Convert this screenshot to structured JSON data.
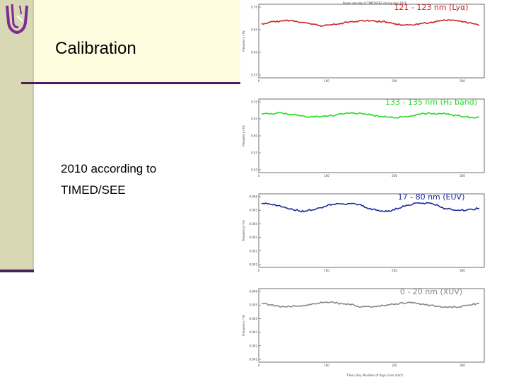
{
  "slide": {
    "title": "Calibration",
    "body_lines": [
      "2010 according to",
      "TIMED/SEE"
    ]
  },
  "colors": {
    "band": "#fffde0",
    "sidebar": "#d8d8b4",
    "rule": "#4b1f5c",
    "logo": "#7a2d91"
  },
  "figure": {
    "top_title": "Power density of TIMED/SEE during day 2010",
    "bottom_xlabel": "Time / day (Number of days since start)",
    "panels": [
      {
        "label": "121 - 123 nm (Lyα)",
        "color": "#cc2222",
        "ylabel": "Frequency / Hz",
        "yticks": [
          "0.70",
          "0.65",
          "0.60",
          "0.55"
        ],
        "xticks": [
          "0",
          "100",
          "200",
          "300"
        ],
        "level": 0.75,
        "noise": 0.06,
        "seed": 1
      },
      {
        "label": "133 - 135 nm (H₂ band)",
        "color": "#22dd22",
        "ylabel": "Frequency / Hz",
        "yticks": [
          "0.70",
          "0.65",
          "0.60",
          "0.55",
          "0.50"
        ],
        "xticks": [
          "0",
          "100",
          "200",
          "300"
        ],
        "level": 0.78,
        "noise": 0.05,
        "seed": 2
      },
      {
        "label": "17 - 80 nm (EUV)",
        "color": "#1a2aa0",
        "ylabel": "Frequency / Hz",
        "yticks": [
          "0.006",
          "0.005",
          "0.004",
          "0.003",
          "0.002",
          "0.001"
        ],
        "xticks": [
          "0",
          "100",
          "200",
          "300"
        ],
        "level": 0.82,
        "noise": 0.1,
        "seed": 3
      },
      {
        "label": "0 - 20 nm (XUV)",
        "color": "#888888",
        "ylabel": "Frequency / Hz",
        "yticks": [
          "0.006",
          "0.005",
          "0.004",
          "0.003",
          "0.002",
          "0.001"
        ],
        "xticks": [
          "0",
          "100",
          "200",
          "300"
        ],
        "level": 0.78,
        "noise": 0.06,
        "seed": 4
      }
    ]
  }
}
